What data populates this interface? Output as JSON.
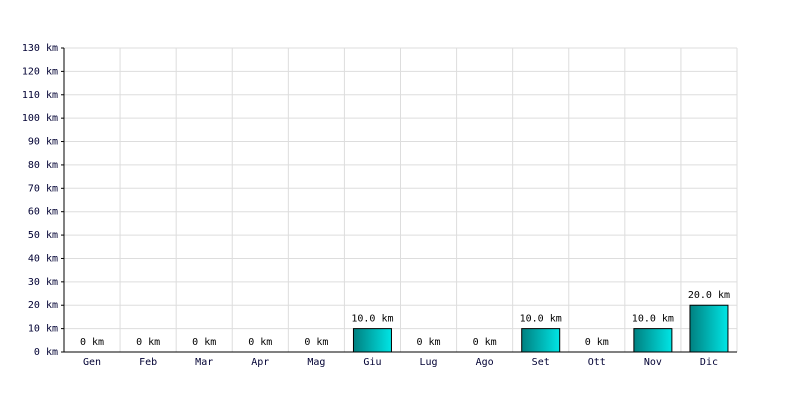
{
  "chart_data": {
    "type": "bar",
    "categories": [
      "Gen",
      "Feb",
      "Mar",
      "Apr",
      "Mag",
      "Giu",
      "Lug",
      "Ago",
      "Set",
      "Ott",
      "Nov",
      "Dic"
    ],
    "values": [
      0,
      0,
      0,
      0,
      0,
      10,
      0,
      0,
      10,
      0,
      10,
      20
    ],
    "value_labels": [
      "0 km",
      "0 km",
      "0 km",
      "0 km",
      "0 km",
      "10.0 km",
      "0 km",
      "0 km",
      "10.0 km",
      "0 km",
      "10.0 km",
      "20.0 km"
    ],
    "color": "#00e5e5",
    "ylim": [
      0,
      130
    ],
    "yticks": [
      {
        "value": 0,
        "label": "0 km"
      },
      {
        "value": 10,
        "label": "10 km"
      },
      {
        "value": 20,
        "label": "20 km"
      },
      {
        "value": 30,
        "label": "30 km"
      },
      {
        "value": 40,
        "label": "40 km"
      },
      {
        "value": 50,
        "label": "50 km"
      },
      {
        "value": 60,
        "label": "60 km"
      },
      {
        "value": 70,
        "label": "70 km"
      },
      {
        "value": 80,
        "label": "80 km"
      },
      {
        "value": 90,
        "label": "90 km"
      },
      {
        "value": 100,
        "label": "100 km"
      },
      {
        "value": 110,
        "label": "110 km"
      },
      {
        "value": 120,
        "label": "120 km"
      },
      {
        "value": 130,
        "label": "130 km"
      }
    ],
    "grid": true
  }
}
